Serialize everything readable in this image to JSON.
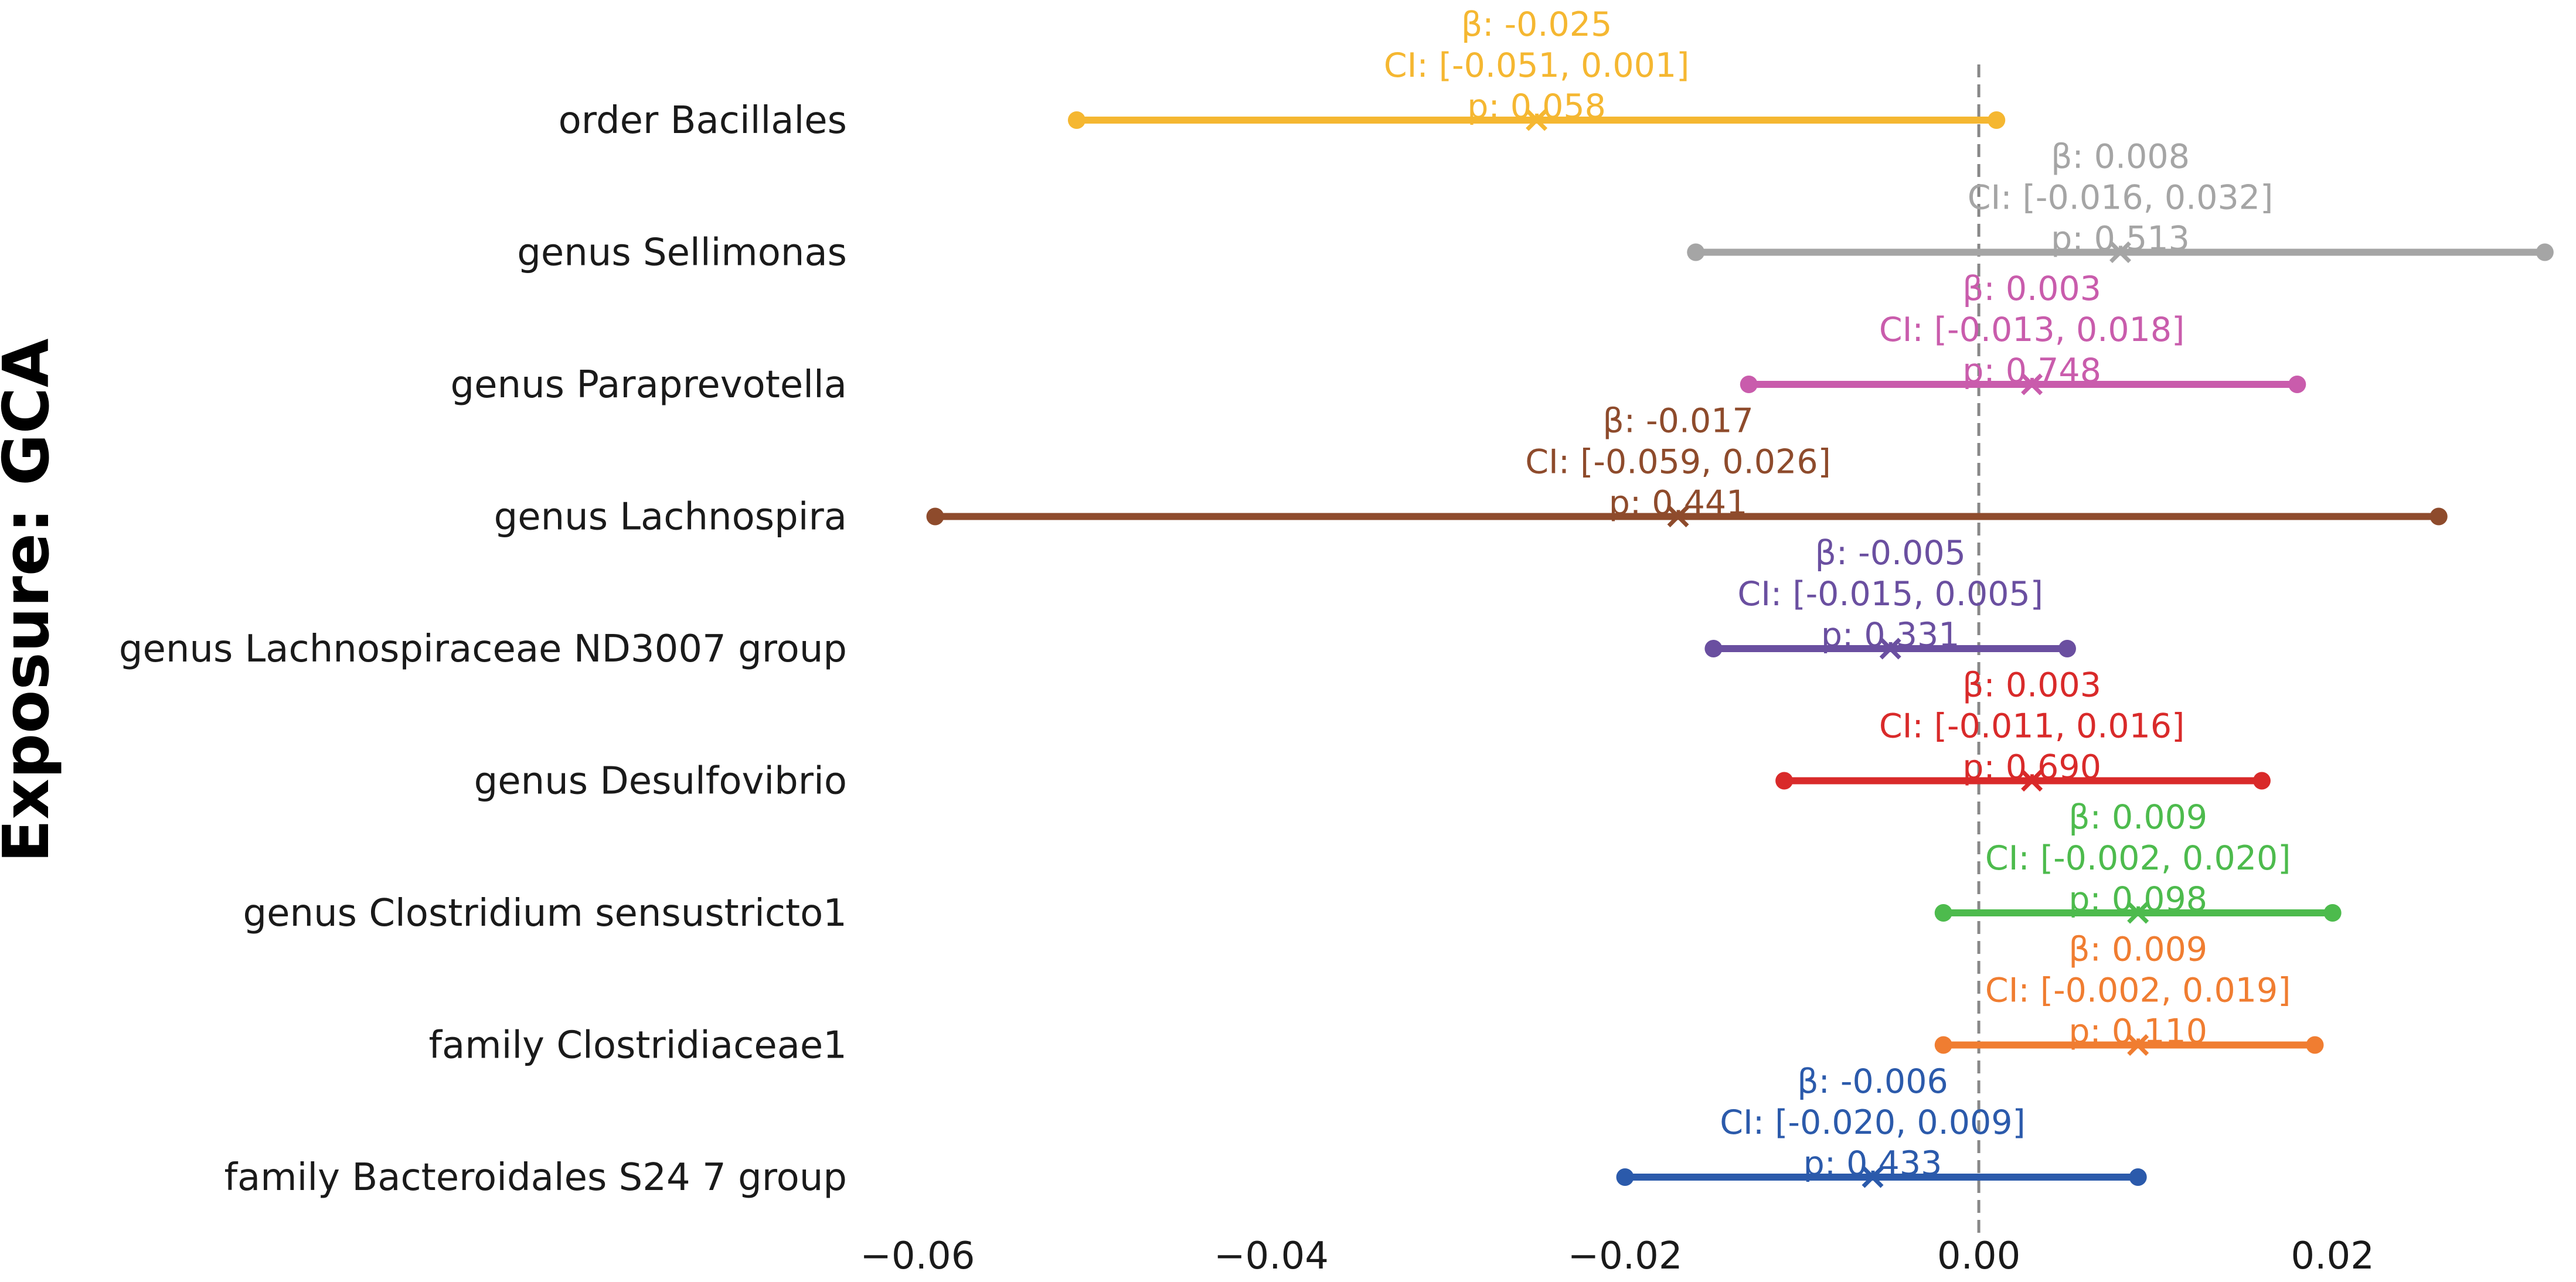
{
  "chart_data": {
    "type": "forest",
    "ylabel": "Exposure: GCA",
    "xlim": [
      -0.062,
      0.033
    ],
    "xticks": [
      -0.06,
      -0.04,
      -0.02,
      0.0,
      0.02
    ],
    "xtick_labels": [
      "−0.06",
      "−0.04",
      "−0.02",
      "0.00",
      "0.02"
    ],
    "reference_line": 0.0,
    "rows": [
      {
        "label": "order Bacillales",
        "beta": -0.025,
        "ci": [
          -0.051,
          0.001
        ],
        "p": 0.058,
        "beta_text": "β: -0.025",
        "ci_text": "CI: [-0.051, 0.001]",
        "p_text": "p: 0.058",
        "color": "#f5b731"
      },
      {
        "label": "genus Sellimonas",
        "beta": 0.008,
        "ci": [
          -0.016,
          0.032
        ],
        "p": 0.513,
        "beta_text": "β: 0.008",
        "ci_text": "CI: [-0.016, 0.032]",
        "p_text": "p: 0.513",
        "color": "#a5a5a5"
      },
      {
        "label": "genus Paraprevotella",
        "beta": 0.003,
        "ci": [
          -0.013,
          0.018
        ],
        "p": 0.748,
        "beta_text": "β: 0.003",
        "ci_text": "CI: [-0.013, 0.018]",
        "p_text": "p: 0.748",
        "color": "#c95cac"
      },
      {
        "label": "genus Lachnospira",
        "beta": -0.017,
        "ci": [
          -0.059,
          0.026
        ],
        "p": 0.441,
        "beta_text": "β: -0.017",
        "ci_text": "CI: [-0.059, 0.026]",
        "p_text": "p: 0.441",
        "color": "#8e4b2c"
      },
      {
        "label": "genus Lachnospiraceae ND3007 group",
        "beta": -0.005,
        "ci": [
          -0.015,
          0.005
        ],
        "p": 0.331,
        "beta_text": "β: -0.005",
        "ci_text": "CI: [-0.015, 0.005]",
        "p_text": "p: 0.331",
        "color": "#6a4fa0"
      },
      {
        "label": "genus Desulfovibrio",
        "beta": 0.003,
        "ci": [
          -0.011,
          0.016
        ],
        "p": 0.69,
        "beta_text": "β: 0.003",
        "ci_text": "CI: [-0.011, 0.016]",
        "p_text": "p: 0.690",
        "color": "#d92a2a"
      },
      {
        "label": "genus Clostridium sensustricto1",
        "beta": 0.009,
        "ci": [
          -0.002,
          0.02
        ],
        "p": 0.098,
        "beta_text": "β: 0.009",
        "ci_text": "CI: [-0.002, 0.020]",
        "p_text": "p: 0.098",
        "color": "#4dbb4d"
      },
      {
        "label": "family Clostridiaceae1",
        "beta": 0.009,
        "ci": [
          -0.002,
          0.019
        ],
        "p": 0.11,
        "beta_text": "β: 0.009",
        "ci_text": "CI: [-0.002, 0.019]",
        "p_text": "p: 0.110",
        "color": "#f07d31"
      },
      {
        "label": "family Bacteroidales S24 7 group",
        "beta": -0.006,
        "ci": [
          -0.02,
          0.009
        ],
        "p": 0.433,
        "beta_text": "β: -0.006",
        "ci_text": "CI: [-0.020, 0.009]",
        "p_text": "p: 0.433",
        "color": "#2b5aab"
      }
    ]
  }
}
